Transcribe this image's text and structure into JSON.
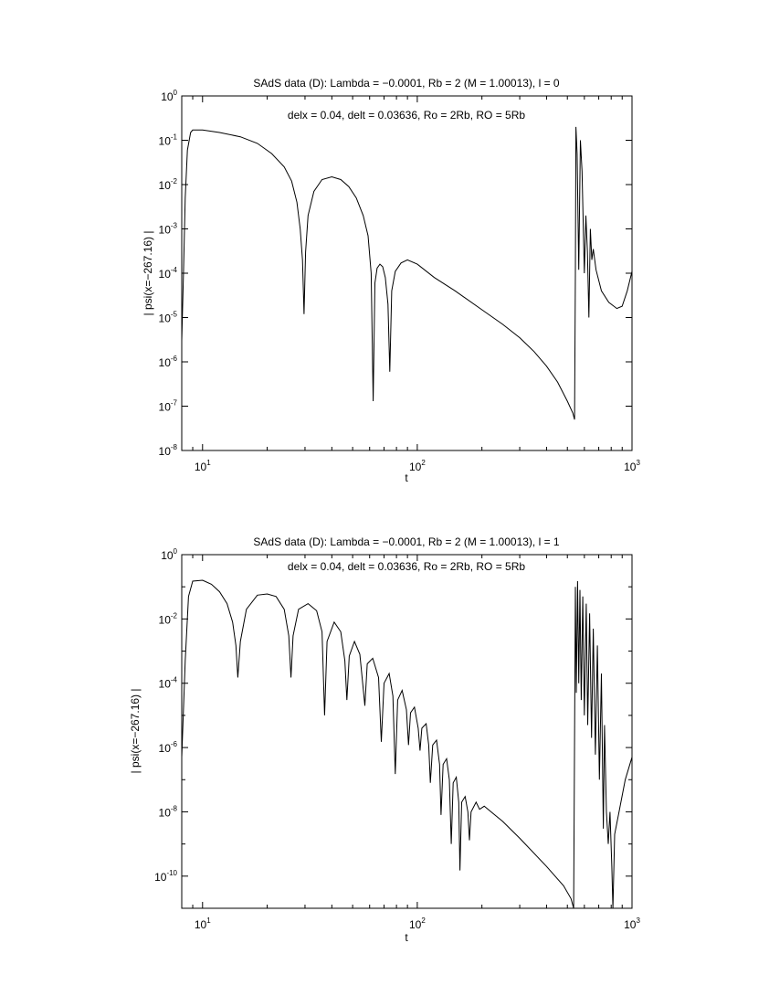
{
  "chart_data": [
    {
      "type": "line",
      "title": "SAdS data (D): Lambda = −0.0001, Rb = 2 (M = 1.00013), l = 0",
      "annotation": "delx = 0.04, delt = 0.03636, Ro = 2Rb, RO = 5Rb",
      "xlabel": "t",
      "ylabel": "| psi(x=−267.16) |",
      "xscale": "log",
      "yscale": "log",
      "xlim": [
        8,
        1000
      ],
      "ylim": [
        1e-08,
        1
      ],
      "xticks": [
        {
          "value": 10,
          "label": "10",
          "exp": "1"
        },
        {
          "value": 100,
          "label": "10",
          "exp": "2"
        },
        {
          "value": 1000,
          "label": "10",
          "exp": "3"
        }
      ],
      "yticks": [
        {
          "value": 1,
          "label": "10",
          "exp": "0"
        },
        {
          "value": 0.1,
          "label": "10",
          "exp": "-1"
        },
        {
          "value": 0.01,
          "label": "10",
          "exp": "-2"
        },
        {
          "value": 0.001,
          "label": "10",
          "exp": "-3"
        },
        {
          "value": 0.0001,
          "label": "10",
          "exp": "-4"
        },
        {
          "value": 1e-05,
          "label": "10",
          "exp": "-5"
        },
        {
          "value": 1e-06,
          "label": "10",
          "exp": "-6"
        },
        {
          "value": 1e-07,
          "label": "10",
          "exp": "-7"
        },
        {
          "value": 1e-08,
          "label": "10",
          "exp": "-8"
        }
      ],
      "grid": false,
      "series": [
        {
          "points": [
            [
              8.0,
              3e-06
            ],
            [
              8.15,
              0.0001
            ],
            [
              8.3,
              0.005
            ],
            [
              8.5,
              0.06
            ],
            [
              8.8,
              0.15
            ],
            [
              9.0,
              0.17
            ],
            [
              10.0,
              0.17
            ],
            [
              12.0,
              0.15
            ],
            [
              15.0,
              0.12
            ],
            [
              18.0,
              0.085
            ],
            [
              21.0,
              0.05
            ],
            [
              24.0,
              0.025
            ],
            [
              26.0,
              0.012
            ],
            [
              27.5,
              0.004
            ],
            [
              28.5,
              0.001
            ],
            [
              29.2,
              0.0002
            ],
            [
              29.7,
              1.2e-05
            ],
            [
              30.2,
              0.0003
            ],
            [
              31.0,
              0.002
            ],
            [
              33.0,
              0.007
            ],
            [
              36.0,
              0.013
            ],
            [
              40.0,
              0.015
            ],
            [
              44.0,
              0.013
            ],
            [
              48.0,
              0.009
            ],
            [
              52.0,
              0.005
            ],
            [
              56.0,
              0.002
            ],
            [
              59.0,
              0.0007
            ],
            [
              61.0,
              0.0001
            ],
            [
              62.3,
              1.3e-07
            ],
            [
              63.5,
              6e-05
            ],
            [
              65.0,
              0.00013
            ],
            [
              67.0,
              0.00016
            ],
            [
              69.0,
              0.00014
            ],
            [
              71.0,
              8e-05
            ],
            [
              73.0,
              2e-05
            ],
            [
              74.5,
              6e-07
            ],
            [
              76.0,
              4e-05
            ],
            [
              79.0,
              0.00011
            ],
            [
              84.0,
              0.00017
            ],
            [
              90.0,
              0.0002
            ],
            [
              100.0,
              0.00016
            ],
            [
              120.0,
              8e-05
            ],
            [
              150.0,
              4e-05
            ],
            [
              200.0,
              1.5e-05
            ],
            [
              250.0,
              7e-06
            ],
            [
              300.0,
              3.5e-06
            ],
            [
              350.0,
              1.7e-06
            ],
            [
              400.0,
              8e-07
            ],
            [
              450.0,
              3.5e-07
            ],
            [
              500.0,
              1.3e-07
            ],
            [
              530.0,
              7e-08
            ],
            [
              540.0,
              5e-08
            ],
            [
              545.0,
              0.0001
            ],
            [
              548.0,
              0.2
            ],
            [
              555.0,
              0.05
            ],
            [
              565.0,
              0.00012
            ],
            [
              575.0,
              0.1
            ],
            [
              585.0,
              0.02
            ],
            [
              600.0,
              0.0001
            ],
            [
              610.0,
              0.002
            ],
            [
              620.0,
              0.0003
            ],
            [
              630.0,
              1e-05
            ],
            [
              640.0,
              0.001
            ],
            [
              650.0,
              0.0002
            ],
            [
              660.0,
              0.00035
            ],
            [
              680.0,
              0.00012
            ],
            [
              720.0,
              4e-05
            ],
            [
              780.0,
              2.2e-05
            ],
            [
              850.0,
              1.6e-05
            ],
            [
              900.0,
              1.8e-05
            ],
            [
              950.0,
              4e-05
            ],
            [
              1000.0,
              0.00011
            ]
          ]
        }
      ]
    },
    {
      "type": "line",
      "title": "SAdS data (D): Lambda = −0.0001, Rb = 2 (M = 1.00013), l = 1",
      "annotation": "delx = 0.04, delt = 0.03636, Ro = 2Rb, RO = 5Rb",
      "xlabel": "t",
      "ylabel": "| psi(x=−267.16) |",
      "xscale": "log",
      "yscale": "log",
      "xlim": [
        8,
        1000
      ],
      "ylim": [
        1e-11,
        1
      ],
      "xticks": [
        {
          "value": 10,
          "label": "10",
          "exp": "1"
        },
        {
          "value": 100,
          "label": "10",
          "exp": "2"
        },
        {
          "value": 1000,
          "label": "10",
          "exp": "3"
        }
      ],
      "yticks": [
        {
          "value": 1,
          "label": "10",
          "exp": "0"
        },
        {
          "value": 0.01,
          "label": "10",
          "exp": "-2"
        },
        {
          "value": 0.0001,
          "label": "10",
          "exp": "-4"
        },
        {
          "value": 1e-06,
          "label": "10",
          "exp": "-6"
        },
        {
          "value": 1e-08,
          "label": "10",
          "exp": "-8"
        },
        {
          "value": 1e-10,
          "label": "10",
          "exp": "-10"
        }
      ],
      "grid": false,
      "series": [
        {
          "points": [
            [
              8.0,
              5e-07
            ],
            [
              8.3,
              0.0005
            ],
            [
              8.6,
              0.05
            ],
            [
              9.0,
              0.15
            ],
            [
              10.0,
              0.16
            ],
            [
              11.0,
              0.12
            ],
            [
              12.0,
              0.07
            ],
            [
              13.0,
              0.03
            ],
            [
              13.8,
              0.008
            ],
            [
              14.3,
              0.0015
            ],
            [
              14.6,
              0.00015
            ],
            [
              15.0,
              0.002
            ],
            [
              16.0,
              0.02
            ],
            [
              18.0,
              0.055
            ],
            [
              20.0,
              0.06
            ],
            [
              22.0,
              0.05
            ],
            [
              24.0,
              0.02
            ],
            [
              25.2,
              0.003
            ],
            [
              25.8,
              0.00015
            ],
            [
              26.4,
              0.003
            ],
            [
              28.0,
              0.02
            ],
            [
              31.0,
              0.03
            ],
            [
              34.0,
              0.018
            ],
            [
              36.0,
              0.004
            ],
            [
              37.0,
              1e-05
            ],
            [
              38.0,
              0.002
            ],
            [
              41.0,
              0.008
            ],
            [
              44.0,
              0.004
            ],
            [
              46.0,
              0.0005
            ],
            [
              47.0,
              3e-05
            ],
            [
              48.2,
              0.0007
            ],
            [
              51.0,
              0.002
            ],
            [
              54.0,
              0.0008
            ],
            [
              57.0,
              2e-05
            ],
            [
              58.5,
              0.0004
            ],
            [
              62.0,
              0.0006
            ],
            [
              66.0,
              0.00015
            ],
            [
              68.0,
              1.5e-06
            ],
            [
              70.0,
              0.0001
            ],
            [
              74.0,
              0.0002
            ],
            [
              77.0,
              4e-05
            ],
            [
              79.0,
              1.5e-07
            ],
            [
              81.0,
              3e-05
            ],
            [
              85.0,
              6e-05
            ],
            [
              89.0,
              1.5e-05
            ],
            [
              91.0,
              1.2e-06
            ],
            [
              93.0,
              1.2e-05
            ],
            [
              97.0,
              1.8e-05
            ],
            [
              101.0,
              4e-06
            ],
            [
              103.0,
              8e-07
            ],
            [
              105.0,
              4e-06
            ],
            [
              110.0,
              5.5e-06
            ],
            [
              113.0,
              1.2e-06
            ],
            [
              115.0,
              8e-08
            ],
            [
              118.0,
              1.2e-06
            ],
            [
              123.0,
              1.7e-06
            ],
            [
              127.0,
              3e-07
            ],
            [
              129.0,
              8e-09
            ],
            [
              132.0,
              3e-07
            ],
            [
              137.0,
              4.5e-07
            ],
            [
              141.0,
              1e-07
            ],
            [
              144.0,
              1e-09
            ],
            [
              147.0,
              8e-08
            ],
            [
              152.0,
              1.2e-07
            ],
            [
              156.0,
              2e-08
            ],
            [
              158.0,
              1.5e-10
            ],
            [
              161.0,
              2e-08
            ],
            [
              167.0,
              3e-08
            ],
            [
              172.0,
              1e-08
            ],
            [
              175.0,
              1.3e-09
            ],
            [
              178.0,
              1e-08
            ],
            [
              188.0,
              2e-08
            ],
            [
              195.0,
              1.2e-08
            ],
            [
              205.0,
              1.5e-08
            ],
            [
              250.0,
              5e-09
            ],
            [
              300.0,
              1.5e-09
            ],
            [
              400.0,
              2e-10
            ],
            [
              480.0,
              5e-11
            ],
            [
              520.0,
              2e-11
            ],
            [
              535.0,
              1e-11
            ],
            [
              545.0,
              0.1
            ],
            [
              550.0,
              5e-05
            ],
            [
              558.0,
              0.15
            ],
            [
              565.0,
              0.0001
            ],
            [
              572.0,
              0.08
            ],
            [
              580.0,
              3e-05
            ],
            [
              590.0,
              0.05
            ],
            [
              600.0,
              1e-05
            ],
            [
              612.0,
              0.03
            ],
            [
              622.0,
              5e-06
            ],
            [
              635.0,
              0.015
            ],
            [
              648.0,
              2e-06
            ],
            [
              660.0,
              0.005
            ],
            [
              675.0,
              6e-07
            ],
            [
              690.0,
              0.0015
            ],
            [
              705.0,
              1e-07
            ],
            [
              720.0,
              0.0002
            ],
            [
              735.0,
              3e-09
            ],
            [
              745.0,
              5e-06
            ],
            [
              760.0,
              1e-08
            ],
            [
              775.0,
              1e-09
            ],
            [
              790.0,
              1e-08
            ],
            [
              805.0,
              2e-10
            ],
            [
              815.0,
              1e-11
            ],
            [
              830.0,
              2e-09
            ],
            [
              870.0,
              1e-08
            ],
            [
              930.0,
              1e-07
            ],
            [
              1000.0,
              5e-07
            ]
          ]
        }
      ]
    }
  ]
}
